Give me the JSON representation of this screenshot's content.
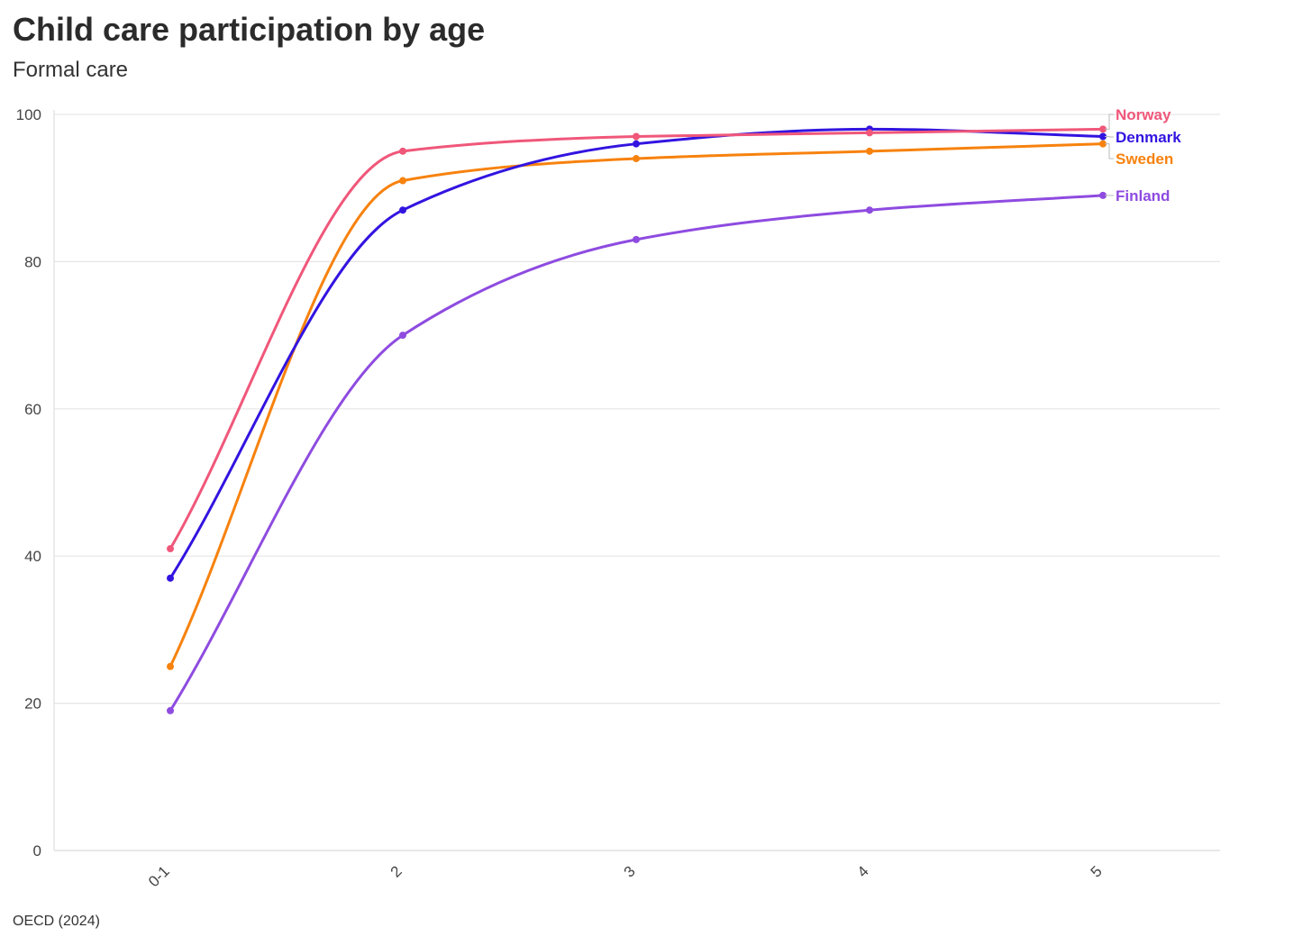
{
  "title": "Child care participation by age",
  "subtitle": "Formal care",
  "source": "OECD (2024)",
  "chart_data": {
    "type": "line",
    "title": "Child care participation by age",
    "subtitle": "Formal care",
    "categories": [
      "0-1",
      "2",
      "3",
      "4",
      "5"
    ],
    "ylim": [
      0,
      100
    ],
    "yticks": [
      0,
      20,
      40,
      60,
      80,
      100
    ],
    "grid": true,
    "legend": "direct labels at line ends",
    "series": [
      {
        "name": "Norway",
        "color": "#f0577a",
        "values": [
          41,
          95,
          97,
          97.5,
          98
        ]
      },
      {
        "name": "Denmark",
        "color": "#3214e0",
        "values": [
          37,
          87,
          96,
          98,
          97
        ]
      },
      {
        "name": "Sweden",
        "color": "#f7820e",
        "values": [
          25,
          91,
          94,
          95,
          96
        ]
      },
      {
        "name": "Finland",
        "color": "#8e4be0",
        "values": [
          19,
          70,
          83,
          87,
          89
        ]
      }
    ]
  }
}
